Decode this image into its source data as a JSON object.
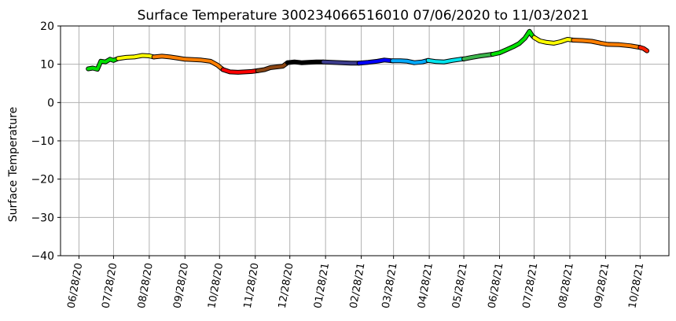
{
  "chart_data": {
    "type": "line",
    "title": "Surface Temperature 300234066516010  07/06/2020 to 11/03/2021",
    "xlabel": "",
    "ylabel": "Surface Temperature",
    "xlim": [
      "2020-06-12",
      "2021-11-22"
    ],
    "ylim": [
      -40,
      20
    ],
    "grid": true,
    "legend": "none",
    "x_ticks": [
      {
        "date": "2020-06-28",
        "label": "06/28/20"
      },
      {
        "date": "2020-07-28",
        "label": "07/28/20"
      },
      {
        "date": "2020-08-28",
        "label": "08/28/20"
      },
      {
        "date": "2020-09-28",
        "label": "09/28/20"
      },
      {
        "date": "2020-10-28",
        "label": "10/28/20"
      },
      {
        "date": "2020-11-28",
        "label": "11/28/20"
      },
      {
        "date": "2020-12-28",
        "label": "12/28/20"
      },
      {
        "date": "2021-01-28",
        "label": "01/28/21"
      },
      {
        "date": "2021-02-28",
        "label": "02/28/21"
      },
      {
        "date": "2021-03-28",
        "label": "03/28/21"
      },
      {
        "date": "2021-04-28",
        "label": "04/28/21"
      },
      {
        "date": "2021-05-28",
        "label": "05/28/21"
      },
      {
        "date": "2021-06-28",
        "label": "06/28/21"
      },
      {
        "date": "2021-07-28",
        "label": "07/28/21"
      },
      {
        "date": "2021-08-28",
        "label": "08/28/21"
      },
      {
        "date": "2021-09-28",
        "label": "09/28/21"
      },
      {
        "date": "2021-10-28",
        "label": "10/28/21"
      }
    ],
    "y_ticks": [
      20,
      10,
      0,
      -10,
      -20,
      -30,
      -40
    ],
    "segments": [
      {
        "color": "#00e000",
        "points": [
          [
            "2020-07-06",
            8.8
          ],
          [
            "2020-07-10",
            9.0
          ],
          [
            "2020-07-14",
            8.7
          ],
          [
            "2020-07-17",
            10.8
          ],
          [
            "2020-07-21",
            10.6
          ],
          [
            "2020-07-25",
            11.3
          ],
          [
            "2020-07-28",
            11.0
          ],
          [
            "2020-08-01",
            11.5
          ]
        ]
      },
      {
        "color": "#ffff00",
        "points": [
          [
            "2020-08-01",
            11.5
          ],
          [
            "2020-08-08",
            11.8
          ],
          [
            "2020-08-15",
            11.9
          ],
          [
            "2020-08-22",
            12.3
          ],
          [
            "2020-08-28",
            12.2
          ],
          [
            "2020-09-01",
            11.9
          ]
        ]
      },
      {
        "color": "#ff7f00",
        "points": [
          [
            "2020-09-01",
            11.9
          ],
          [
            "2020-09-08",
            12.1
          ],
          [
            "2020-09-15",
            11.9
          ],
          [
            "2020-09-22",
            11.6
          ],
          [
            "2020-09-28",
            11.3
          ],
          [
            "2020-10-05",
            11.2
          ],
          [
            "2020-10-12",
            11.1
          ],
          [
            "2020-10-20",
            10.8
          ],
          [
            "2020-10-26",
            9.8
          ],
          [
            "2020-10-31",
            8.6
          ]
        ]
      },
      {
        "color": "#ff0000",
        "points": [
          [
            "2020-10-31",
            8.6
          ],
          [
            "2020-11-06",
            8.0
          ],
          [
            "2020-11-13",
            7.9
          ],
          [
            "2020-11-19",
            8.0
          ],
          [
            "2020-11-25",
            8.1
          ],
          [
            "2020-11-30",
            8.3
          ]
        ]
      },
      {
        "color": "#8b4513",
        "points": [
          [
            "2020-11-30",
            8.3
          ],
          [
            "2020-12-06",
            8.6
          ],
          [
            "2020-12-11",
            9.1
          ],
          [
            "2020-12-16",
            9.3
          ],
          [
            "2020-12-22",
            9.5
          ],
          [
            "2020-12-26",
            10.4
          ]
        ]
      },
      {
        "color": "#000000",
        "points": [
          [
            "2020-12-26",
            10.4
          ],
          [
            "2021-01-01",
            10.6
          ],
          [
            "2021-01-07",
            10.4
          ],
          [
            "2021-01-13",
            10.5
          ],
          [
            "2021-01-20",
            10.6
          ],
          [
            "2021-01-26",
            10.6
          ]
        ]
      },
      {
        "color": "#3c3c8c",
        "points": [
          [
            "2021-01-26",
            10.6
          ],
          [
            "2021-02-03",
            10.5
          ],
          [
            "2021-02-11",
            10.4
          ],
          [
            "2021-02-19",
            10.3
          ],
          [
            "2021-02-26",
            10.3
          ]
        ]
      },
      {
        "color": "#0000ff",
        "points": [
          [
            "2021-02-26",
            10.3
          ],
          [
            "2021-03-06",
            10.5
          ],
          [
            "2021-03-14",
            10.8
          ],
          [
            "2021-03-20",
            11.1
          ],
          [
            "2021-03-27",
            10.9
          ]
        ]
      },
      {
        "color": "#00aaff",
        "points": [
          [
            "2021-03-27",
            10.9
          ],
          [
            "2021-04-03",
            10.9
          ],
          [
            "2021-04-09",
            10.8
          ],
          [
            "2021-04-15",
            10.4
          ],
          [
            "2021-04-22",
            10.6
          ],
          [
            "2021-04-27",
            11.0
          ]
        ]
      },
      {
        "color": "#00e5ee",
        "points": [
          [
            "2021-04-27",
            11.0
          ],
          [
            "2021-05-04",
            10.7
          ],
          [
            "2021-05-11",
            10.6
          ],
          [
            "2021-05-18",
            11.0
          ],
          [
            "2021-05-25",
            11.3
          ],
          [
            "2021-05-28",
            11.4
          ]
        ]
      },
      {
        "color": "#3cb44b",
        "points": [
          [
            "2021-05-28",
            11.4
          ],
          [
            "2021-06-04",
            11.8
          ],
          [
            "2021-06-10",
            12.1
          ],
          [
            "2021-06-17",
            12.4
          ],
          [
            "2021-06-22",
            12.6
          ]
        ]
      },
      {
        "color": "#00e000",
        "points": [
          [
            "2021-06-22",
            12.6
          ],
          [
            "2021-06-28",
            13.0
          ],
          [
            "2021-07-04",
            13.8
          ],
          [
            "2021-07-10",
            14.6
          ],
          [
            "2021-07-15",
            15.4
          ],
          [
            "2021-07-20",
            16.8
          ],
          [
            "2021-07-24",
            18.6
          ],
          [
            "2021-07-26",
            17.6
          ],
          [
            "2021-07-28",
            17.0
          ]
        ]
      },
      {
        "color": "#ffff00",
        "points": [
          [
            "2021-07-28",
            17.0
          ],
          [
            "2021-08-02",
            16.1
          ],
          [
            "2021-08-08",
            15.7
          ],
          [
            "2021-08-14",
            15.5
          ],
          [
            "2021-08-20",
            15.9
          ],
          [
            "2021-08-26",
            16.5
          ],
          [
            "2021-08-31",
            16.3
          ]
        ]
      },
      {
        "color": "#ff7f00",
        "points": [
          [
            "2021-08-31",
            16.3
          ],
          [
            "2021-09-08",
            16.2
          ],
          [
            "2021-09-16",
            16.0
          ],
          [
            "2021-09-24",
            15.5
          ],
          [
            "2021-09-30",
            15.2
          ],
          [
            "2021-10-10",
            15.1
          ],
          [
            "2021-10-20",
            14.8
          ],
          [
            "2021-10-28",
            14.4
          ]
        ]
      },
      {
        "color": "#ff2000",
        "points": [
          [
            "2021-10-28",
            14.4
          ],
          [
            "2021-10-31",
            14.1
          ],
          [
            "2021-11-03",
            13.5
          ]
        ]
      }
    ]
  }
}
